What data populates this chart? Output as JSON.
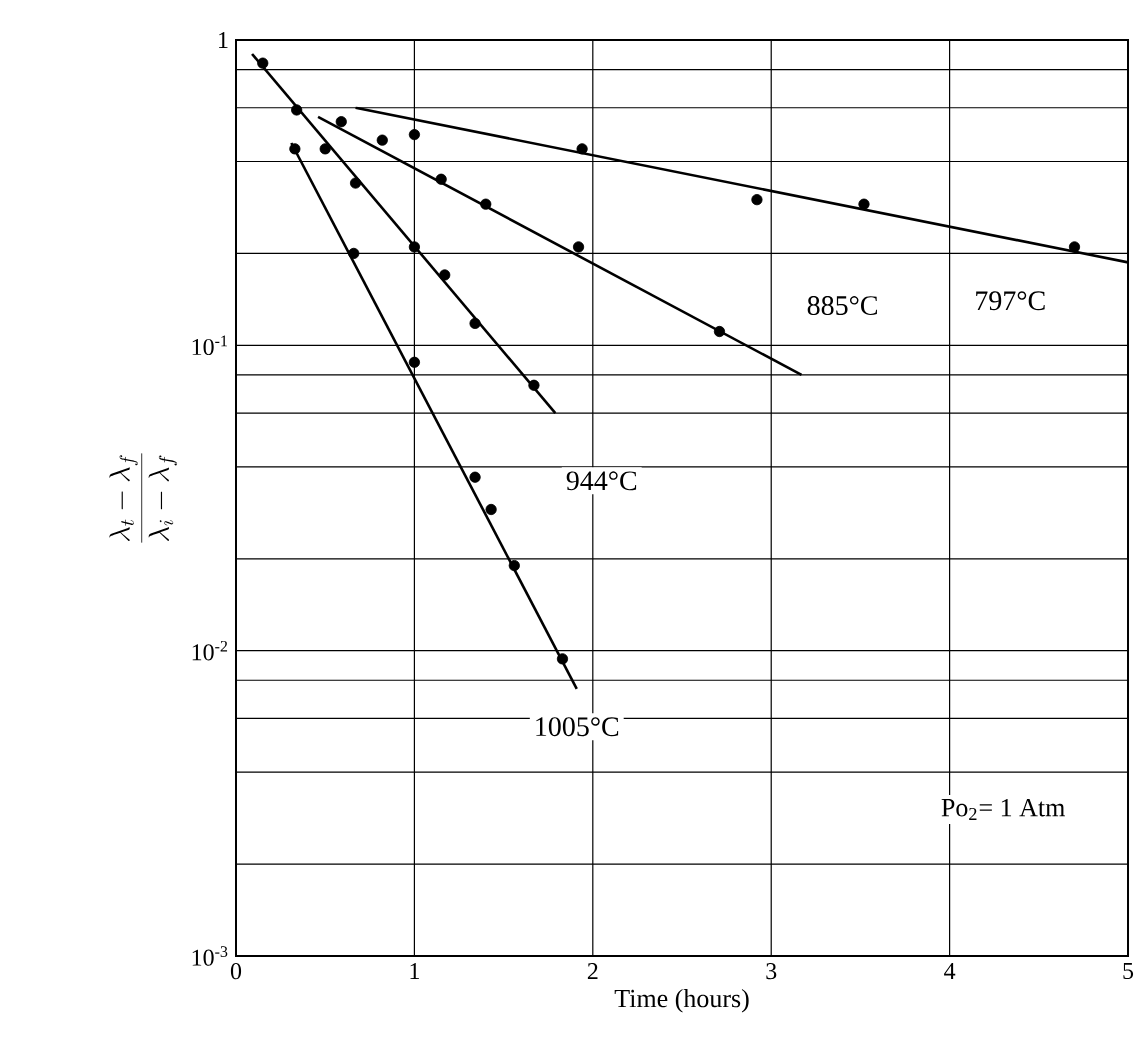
{
  "chart_data": {
    "type": "scatter",
    "xlabel": "Time (hours)",
    "ylabel": "\\frac{\\lambda_t - \\lambda_f}{\\lambda_i - \\lambda_f}",
    "xlim": [
      0,
      5
    ],
    "ylim": [
      0.001,
      1
    ],
    "log": "y",
    "grid": true,
    "xticks": [
      0,
      1,
      2,
      3,
      4,
      5
    ],
    "yticks": [
      1,
      {
        "value": 0.8,
        "label": null
      },
      {
        "value": 0.6,
        "label": null
      },
      {
        "value": 0.4,
        "label": null
      },
      {
        "value": 0.2,
        "label": null
      },
      {
        "value": 0.1,
        "label": "10$^{-1}$"
      },
      {
        "value": 0.08,
        "label": null
      },
      {
        "value": 0.06,
        "label": null
      },
      {
        "value": 0.04,
        "label": null
      },
      {
        "value": 0.02,
        "label": null
      },
      {
        "value": 0.01,
        "label": "10$^{-2}$"
      },
      {
        "value": 0.008,
        "label": null
      },
      {
        "value": 0.006,
        "label": null
      },
      {
        "value": 0.004,
        "label": null
      },
      {
        "value": 0.002,
        "label": null
      },
      {
        "value": 0.001,
        "label": "10$^{-3}$"
      }
    ],
    "series": [
      {
        "marker": "circle",
        "color": "#000000",
        "x": [
          0.15,
          0.34,
          0.5,
          0.67,
          1.0,
          1.17,
          1.34,
          1.67
        ],
        "values": [
          0.84,
          0.59,
          0.44,
          0.34,
          0.21,
          0.17,
          0.118,
          0.074
        ]
      },
      {
        "type": "line",
        "marker": "none",
        "color": "#000000",
        "x": [
          0.09,
          1.79
        ],
        "values": [
          0.9,
          0.06
        ]
      },
      {
        "marker": "circle",
        "color": "#000000",
        "x": [
          0.33,
          0.66,
          1.0,
          1.34,
          1.43,
          1.56,
          1.83
        ],
        "values": [
          0.44,
          0.2,
          0.088,
          0.037,
          0.029,
          0.019,
          0.0094
        ]
      },
      {
        "type": "line",
        "name": "1005°C",
        "marker": "none",
        "color": "#000000",
        "x": [
          0.31,
          1.91
        ],
        "values": [
          0.46,
          0.0075
        ]
      },
      {
        "marker": "circle",
        "color": "#000000",
        "x": [
          0.59,
          0.82,
          1.15,
          1.4,
          1.92,
          2.71
        ],
        "values": [
          0.54,
          0.47,
          0.35,
          0.29,
          0.21,
          0.111
        ]
      },
      {
        "type": "line",
        "marker": "none",
        "color": "#000000",
        "x": [
          0.46,
          3.17
        ],
        "values": [
          0.56,
          0.08
        ]
      },
      {
        "marker": "circle",
        "color": "#000000",
        "x": [
          1.0,
          1.94,
          2.92,
          3.52,
          4.7
        ],
        "values": [
          0.49,
          0.44,
          0.3,
          0.29,
          0.21
        ]
      },
      {
        "type": "line",
        "marker": "none",
        "color": "#000000",
        "x": [
          0.67,
          5.0
        ],
        "values": [
          0.6,
          0.187
        ]
      }
    ],
    "annotations": [
      {
        "text": "797°C",
        "x": 4.34,
        "y": 0.14
      },
      {
        "text": "885°C",
        "x": 3.4,
        "y": 0.135
      },
      {
        "text": "944°C",
        "x": 2.05,
        "y": 0.036
      },
      "Po$_{2}$= 1 Atm"
    ]
  }
}
